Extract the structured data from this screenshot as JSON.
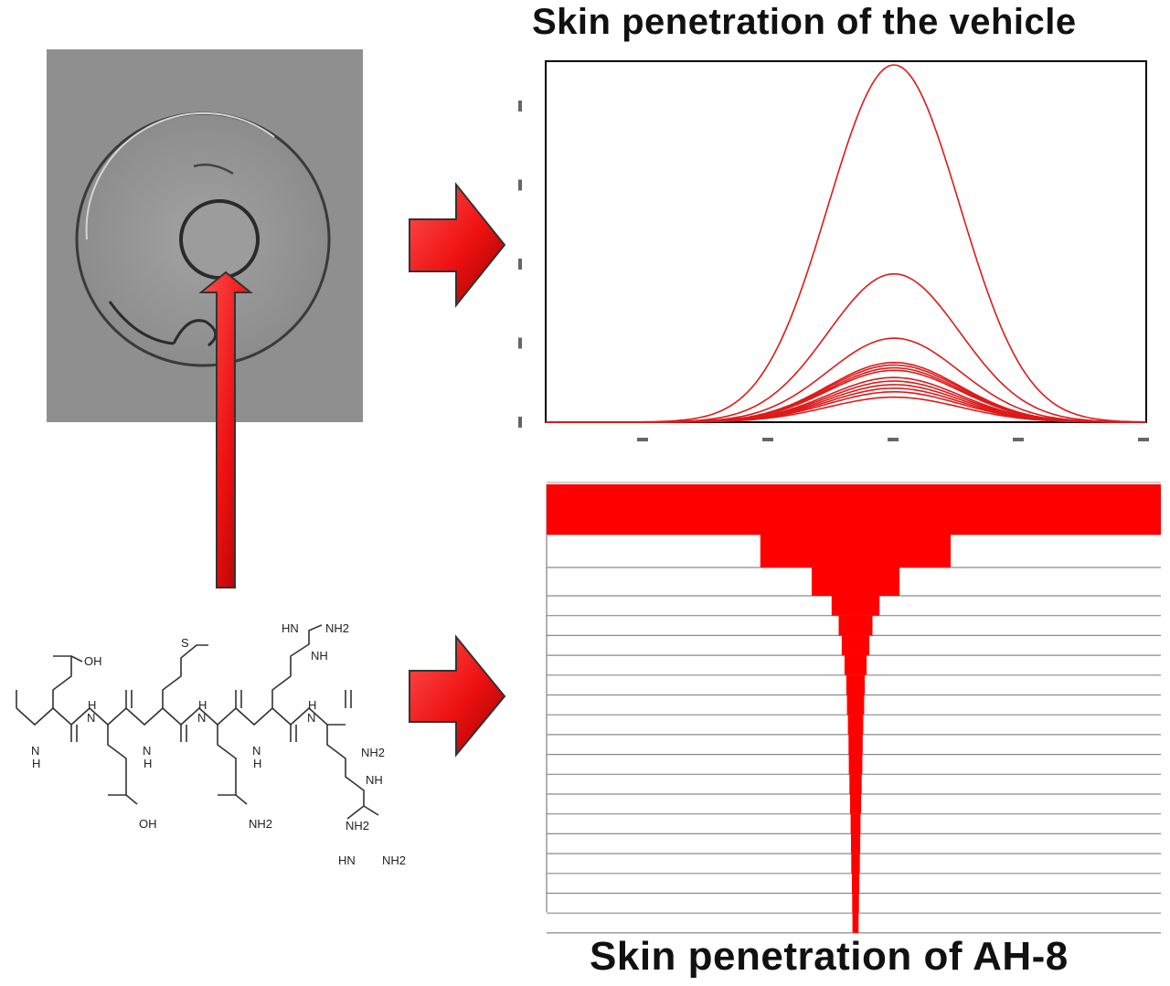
{
  "titles": {
    "top": "Skin penetration of the vehicle",
    "bottom": "Skin penetration of AH-8"
  },
  "molecule": {
    "labels": [
      "OH",
      "OH",
      "NH2",
      "NH2",
      "HN",
      "NH2",
      "NH2",
      "HN",
      "NH2",
      "S",
      "N",
      "H",
      "N",
      "H",
      "N",
      "H",
      "N",
      "H",
      "N",
      "H",
      "N",
      "H",
      "NH",
      "NH"
    ]
  },
  "colors": {
    "arrow": "#ee1111",
    "curve": "#dd1a1a",
    "bar": "#ff0000",
    "micrograph": "#8e8e8e"
  },
  "icons": [
    "right-arrow-icon",
    "right-arrow-icon",
    "up-arrow-icon"
  ],
  "chart_data": [
    {
      "type": "line",
      "title": "Skin penetration of the vehicle",
      "xlabel": "",
      "ylabel": "",
      "x_ticks": [
        "",
        "",
        "",
        "",
        "",
        ""
      ],
      "y_ticks": [
        "",
        "",
        "",
        "",
        ""
      ],
      "series_peaks": [
        1.0,
        0.415,
        0.235,
        0.167,
        0.16,
        0.152,
        0.145,
        0.125,
        0.115,
        0.105,
        0.095,
        0.085,
        0.07
      ],
      "shape": "gaussian",
      "grid": false
    },
    {
      "type": "bar",
      "orientation": "horizontal-centered",
      "title": "Skin penetration of AH-8",
      "values": [
        1.0,
        0.31,
        0.143,
        0.078,
        0.055,
        0.045,
        0.036,
        0.03,
        0.028,
        0.025,
        0.023,
        0.022,
        0.02,
        0.018,
        0.016,
        0.015,
        0.014,
        0.012,
        0.011,
        0.01
      ]
    }
  ]
}
